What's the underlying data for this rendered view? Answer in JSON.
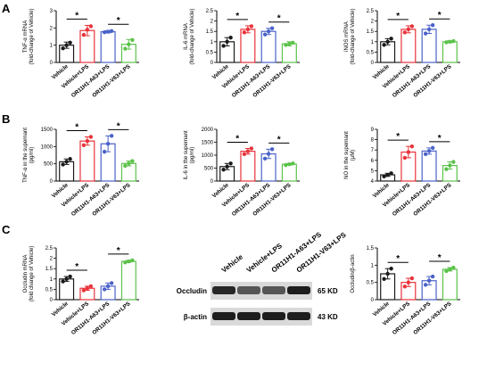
{
  "panel_labels": [
    "A",
    "B",
    "C"
  ],
  "categories": [
    "Vehicle",
    "Vehicle+LPS",
    "OR11H1-A63+LPS",
    "OR11H1-V63+LPS"
  ],
  "colors": {
    "vehicle": "#1a1a1a",
    "lps": "#e8333a",
    "a63": "#4a62c9",
    "v63": "#5bc24a"
  },
  "significance_marker": "*",
  "chart_data": [
    {
      "id": "tnf-mrna",
      "type": "bar",
      "categories": [
        "Vehicle",
        "Vehicle+LPS",
        "OR11H1-A63+LPS",
        "OR11H1-V63+LPS"
      ],
      "ylabel": [
        "TNF-α mRNA",
        "(fold-change of Vehicle)"
      ],
      "ylim": [
        0,
        3
      ],
      "yticks": [
        0,
        1,
        2,
        3
      ],
      "values": [
        1.0,
        1.85,
        1.78,
        1.05
      ],
      "errors": [
        0.18,
        0.3,
        0.07,
        0.28
      ],
      "points": [
        [
          0.82,
          1.15,
          1.0
        ],
        [
          1.6,
          2.1,
          1.9
        ],
        [
          1.75,
          1.82,
          1.78
        ],
        [
          0.8,
          1.3,
          1.05
        ]
      ],
      "sig": [
        [
          0,
          1
        ],
        [
          2,
          3
        ]
      ]
    },
    {
      "id": "il6-mrna",
      "type": "bar",
      "categories": [
        "Vehicle",
        "Vehicle+LPS",
        "OR11H1-A63+LPS",
        "OR11H1-V63+LPS"
      ],
      "ylabel": [
        "IL-6 mRNA",
        "(fold-change of Vehicle)"
      ],
      "ylim": [
        0,
        2.5
      ],
      "yticks": [
        0,
        0.5,
        1.0,
        1.5,
        2.0,
        2.5
      ],
      "values": [
        1.0,
        1.6,
        1.5,
        0.9
      ],
      "errors": [
        0.2,
        0.17,
        0.15,
        0.1
      ],
      "points": [
        [
          0.8,
          1.2,
          1.0
        ],
        [
          1.45,
          1.75,
          1.6
        ],
        [
          1.35,
          1.65,
          1.5
        ],
        [
          0.85,
          0.95,
          0.9
        ]
      ],
      "sig": [
        [
          0,
          1
        ],
        [
          2,
          3
        ]
      ]
    },
    {
      "id": "inos-mrna",
      "type": "bar",
      "categories": [
        "Vehicle",
        "Vehicle+LPS",
        "OR11H1-A63+LPS",
        "OR11H1-V63+LPS"
      ],
      "ylabel": [
        "iNOS mRNA",
        "(fold-change of Vehicle)"
      ],
      "ylim": [
        0,
        2.5
      ],
      "yticks": [
        0,
        0.5,
        1.0,
        1.5,
        2.0,
        2.5
      ],
      "values": [
        1.0,
        1.6,
        1.6,
        1.0
      ],
      "errors": [
        0.15,
        0.17,
        0.2,
        0.05
      ],
      "points": [
        [
          0.85,
          1.15,
          1.0
        ],
        [
          1.45,
          1.75,
          1.6
        ],
        [
          1.4,
          1.8,
          1.6
        ],
        [
          0.97,
          1.03,
          1.0
        ]
      ],
      "sig": [
        [
          0,
          1
        ],
        [
          2,
          3
        ]
      ]
    },
    {
      "id": "tnf-supernatant",
      "type": "bar",
      "categories": [
        "Vehicle",
        "Vehicle+LPS",
        "OR11H1-A63+LPS",
        "OR11H1-V63+LPS"
      ],
      "ylabel": [
        "TNF-α in the supernant",
        "(pg/ml)"
      ],
      "ylim": [
        0,
        1500
      ],
      "yticks": [
        0,
        500,
        1000,
        1500
      ],
      "values": [
        560,
        1160,
        1080,
        510
      ],
      "errors": [
        80,
        120,
        230,
        70
      ],
      "points": [
        [
          480,
          640,
          560
        ],
        [
          1040,
          1280,
          1160
        ],
        [
          850,
          1310,
          1080
        ],
        [
          440,
          580,
          510
        ]
      ],
      "sig": [
        [
          0,
          1
        ],
        [
          2,
          3
        ]
      ]
    },
    {
      "id": "il6-supernatant",
      "type": "bar",
      "categories": [
        "Vehicle",
        "Vehicle+LPS",
        "OR11H1-A63+LPS",
        "OR11H1-V63+LPS"
      ],
      "ylabel": [
        "IL-6 in the supernant",
        "(pg/ml)"
      ],
      "ylim": [
        0,
        2000
      ],
      "yticks": [
        0,
        500,
        1000,
        1500,
        2000
      ],
      "values": [
        560,
        1150,
        1050,
        650
      ],
      "errors": [
        120,
        110,
        180,
        30
      ],
      "points": [
        [
          440,
          680,
          560
        ],
        [
          1040,
          1260,
          1150
        ],
        [
          870,
          1230,
          1050
        ],
        [
          620,
          680,
          650
        ]
      ],
      "sig": [
        [
          0,
          1
        ],
        [
          2,
          3
        ]
      ]
    },
    {
      "id": "no-supernatant",
      "type": "bar",
      "categories": [
        "Vehicle",
        "Vehicle+LPS",
        "OR11H1-A63+LPS",
        "OR11H1-V63+LPS"
      ],
      "ylabel": [
        "NO in the supernant",
        "(μM)"
      ],
      "ylim": [
        4,
        9
      ],
      "yticks": [
        4,
        5,
        6,
        7,
        8,
        9
      ],
      "values": [
        4.6,
        6.8,
        6.9,
        5.5
      ],
      "errors": [
        0.15,
        0.55,
        0.3,
        0.35
      ],
      "points": [
        [
          4.45,
          4.75,
          4.6
        ],
        [
          6.25,
          7.35,
          6.8
        ],
        [
          6.6,
          7.2,
          6.9
        ],
        [
          5.15,
          5.85,
          5.5
        ]
      ],
      "sig": [
        [
          0,
          1
        ],
        [
          2,
          3
        ]
      ]
    },
    {
      "id": "occludin-mrna",
      "type": "bar",
      "categories": [
        "Vehicle",
        "Vehicle+LPS",
        "OR11H1-A63+LPS",
        "OR11H1-V63+LPS"
      ],
      "ylabel": [
        "Occludin mRNA",
        "(fold change of Vehicle)"
      ],
      "ylim": [
        0,
        2.5
      ],
      "yticks": [
        0,
        0.5,
        1.0,
        1.5,
        2.0,
        2.5
      ],
      "values": [
        1.0,
        0.55,
        0.65,
        1.85
      ],
      "errors": [
        0.12,
        0.1,
        0.15,
        0.05
      ],
      "points": [
        [
          0.88,
          1.12,
          1.0
        ],
        [
          0.45,
          0.65,
          0.55
        ],
        [
          0.5,
          0.8,
          0.65
        ],
        [
          1.8,
          1.9,
          1.85
        ]
      ],
      "sig": [
        [
          0,
          1
        ],
        [
          2,
          3
        ]
      ]
    },
    {
      "id": "occludin-actin",
      "type": "bar",
      "categories": [
        "Vehicle",
        "Vehicle+LPS",
        "OR11H1-A63+LPS",
        "OR11H1-V63+LPS"
      ],
      "ylabel": [
        "Occludin/β-actin",
        ""
      ],
      "ylim": [
        0,
        1.5
      ],
      "yticks": [
        0,
        0.5,
        1.0,
        1.5
      ],
      "values": [
        0.75,
        0.5,
        0.55,
        0.88
      ],
      "errors": [
        0.15,
        0.12,
        0.12,
        0.05
      ],
      "points": [
        [
          0.6,
          0.9,
          0.75
        ],
        [
          0.38,
          0.62,
          0.5
        ],
        [
          0.43,
          0.67,
          0.55
        ],
        [
          0.83,
          0.93,
          0.88
        ]
      ],
      "sig": [
        [
          0,
          1
        ],
        [
          2,
          3
        ]
      ]
    }
  ],
  "blot": {
    "lanes": [
      "Vehicle",
      "Vehicle+LPS",
      "OR11H1-A63+LPS",
      "OR11H1-V63+LPS"
    ],
    "rows": [
      {
        "protein": "Occludin",
        "size": "65 KD",
        "intensity": [
          0.85,
          0.6,
          0.6,
          0.9
        ]
      },
      {
        "protein": "β-actin",
        "size": "43 KD",
        "intensity": [
          0.9,
          0.9,
          0.9,
          0.9
        ]
      }
    ]
  }
}
